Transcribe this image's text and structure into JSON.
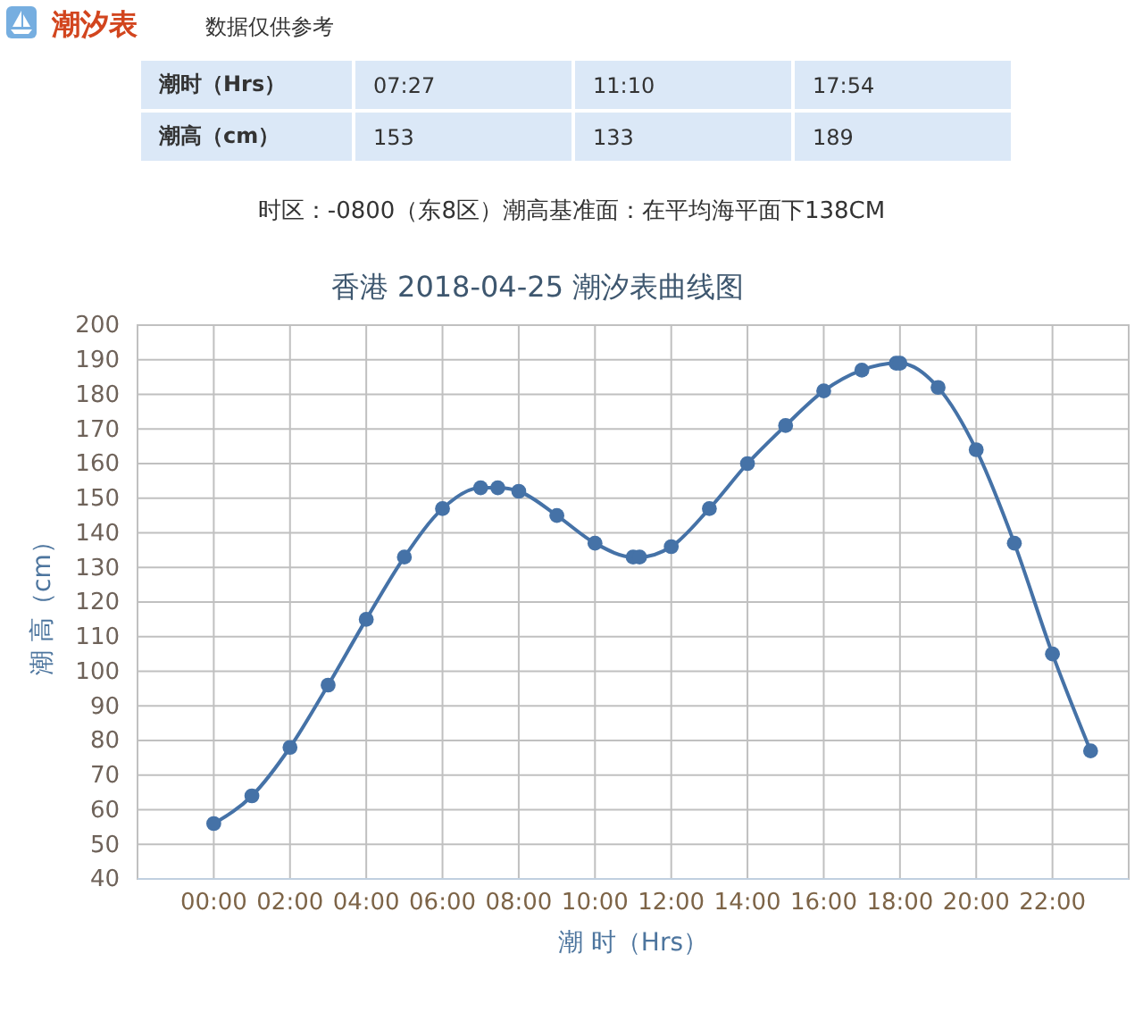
{
  "chart_data": [
    {
      "type": "other",
      "title": "潮汐表",
      "subtitle": "数据仅供参考",
      "y_categories": [
        "潮时（Hrs）",
        "潮高（cm）"
      ],
      "cell_labels": [
        [
          "07:27",
          "11:10",
          "17:54"
        ],
        [
          "153",
          "133",
          "189"
        ]
      ],
      "annotations": [
        "时区：-0800（东8区）潮高基准面：在平均海平面下138CM"
      ]
    },
    {
      "type": "line",
      "title": "香港 2018-04-25 潮汐表曲线图",
      "xlabel": "潮 时（Hrs）",
      "ylabel": "潮 高（cm）",
      "x": [
        0,
        1,
        2,
        3,
        4,
        5,
        6,
        7,
        7.45,
        8,
        9,
        10,
        11,
        11.17,
        12,
        13,
        14,
        15,
        16,
        17,
        17.9,
        18,
        19,
        20,
        21,
        22,
        23
      ],
      "series": [
        {
          "color": "#4572a7",
          "values": [
            56,
            64,
            78,
            96,
            115,
            133,
            147,
            153,
            153,
            152,
            145,
            137,
            133,
            133,
            136,
            147,
            160,
            171,
            181,
            187,
            189,
            189,
            182,
            164,
            137,
            105,
            77
          ]
        }
      ],
      "xlim": [
        -2,
        24
      ],
      "xticks": [
        {
          "value": 0,
          "label": "00:00"
        },
        {
          "value": 2,
          "label": "02:00"
        },
        {
          "value": 4,
          "label": "04:00"
        },
        {
          "value": 6,
          "label": "06:00"
        },
        {
          "value": 8,
          "label": "08:00"
        },
        {
          "value": 10,
          "label": "10:00"
        },
        {
          "value": 12,
          "label": "12:00"
        },
        {
          "value": 14,
          "label": "14:00"
        },
        {
          "value": 16,
          "label": "16:00"
        },
        {
          "value": 18,
          "label": "18:00"
        },
        {
          "value": 20,
          "label": "20:00"
        },
        {
          "value": 22,
          "label": "22:00"
        }
      ],
      "ylim": [
        40,
        200
      ],
      "yticks": [
        40,
        50,
        60,
        70,
        80,
        90,
        100,
        110,
        120,
        130,
        140,
        150,
        160,
        170,
        180,
        190,
        200
      ],
      "grid": true,
      "marker": "circle",
      "line_style": "solid"
    }
  ]
}
